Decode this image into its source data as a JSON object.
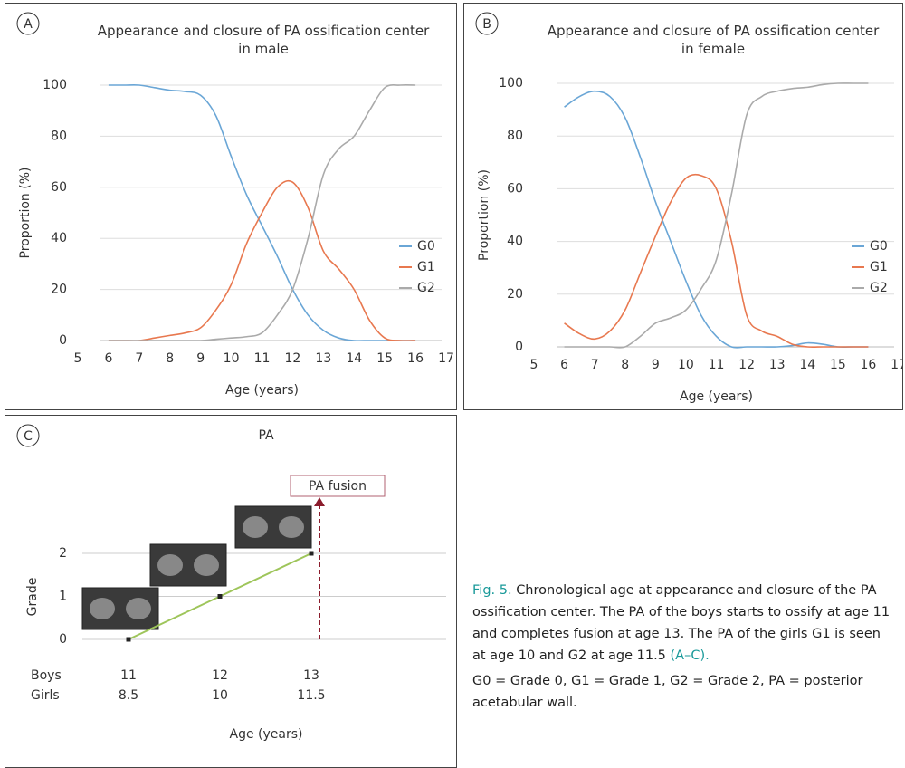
{
  "chart_data": [
    {
      "type": "line",
      "panel": "A",
      "title": "Appearance and closure of PA ossification center in male",
      "x_label": "Age (years)",
      "y_label": "Proportion (%)",
      "x": [
        6,
        6.5,
        7,
        7.5,
        8,
        8.5,
        9,
        9.5,
        10,
        10.5,
        11,
        11.5,
        12,
        12.5,
        13,
        13.5,
        14,
        14.5,
        15,
        15.5,
        16
      ],
      "series": [
        {
          "name": "G0",
          "color": "#6aa6d6",
          "values": [
            100,
            100,
            100,
            99,
            98,
            97.5,
            96,
            88,
            72,
            57,
            45,
            33,
            20,
            10,
            4,
            1,
            0,
            0,
            0,
            0,
            0
          ]
        },
        {
          "name": "G1",
          "color": "#e8784f",
          "values": [
            0,
            0,
            0,
            1,
            2,
            3,
            5,
            12,
            22,
            38,
            50,
            60,
            62,
            52,
            35,
            28,
            20,
            8,
            1,
            0,
            0
          ]
        },
        {
          "name": "G2",
          "color": "#aaaaaa",
          "values": [
            0,
            0,
            0,
            0,
            0,
            0,
            0,
            0.5,
            1,
            1.5,
            3,
            10,
            20,
            40,
            65,
            75,
            80,
            90,
            99,
            100,
            100
          ]
        }
      ],
      "xlim": [
        5,
        17
      ],
      "xticks": [
        5,
        6,
        7,
        8,
        9,
        10,
        11,
        12,
        13,
        14,
        15,
        16,
        17
      ],
      "ylim": [
        0,
        100
      ],
      "yticks": [
        0,
        20,
        40,
        60,
        80,
        100
      ],
      "grid": true,
      "legend": "right"
    },
    {
      "type": "line",
      "panel": "B",
      "title": "Appearance and closure of PA ossification center in female",
      "x_label": "Age (years)",
      "y_label": "Proportion (%)",
      "x": [
        6,
        6.5,
        7,
        7.5,
        8,
        8.5,
        9,
        9.5,
        10,
        10.5,
        11,
        11.5,
        12,
        12.5,
        13,
        13.5,
        14,
        14.5,
        15,
        15.5,
        16
      ],
      "series": [
        {
          "name": "G0",
          "color": "#6aa6d6",
          "values": [
            91,
            95,
            97,
            95,
            87,
            72,
            55,
            40,
            25,
            12,
            4,
            0,
            0,
            0,
            0,
            0.5,
            1.5,
            1,
            0,
            0,
            0
          ]
        },
        {
          "name": "G1",
          "color": "#e8784f",
          "values": [
            9,
            5,
            3,
            6,
            14,
            28,
            42,
            55,
            64,
            65,
            60,
            40,
            12,
            6,
            4,
            1,
            0,
            0,
            0,
            0,
            0
          ]
        },
        {
          "name": "G2",
          "color": "#aaaaaa",
          "values": [
            0,
            0,
            0,
            0,
            0,
            4,
            9,
            11,
            14,
            22,
            33,
            58,
            88,
            95,
            97,
            98,
            98.5,
            99.5,
            100,
            100,
            100
          ]
        }
      ],
      "xlim": [
        5,
        17
      ],
      "xticks": [
        5,
        6,
        7,
        8,
        9,
        10,
        11,
        12,
        13,
        14,
        15,
        16,
        17
      ],
      "ylim": [
        0,
        100
      ],
      "yticks": [
        0,
        20,
        40,
        60,
        80,
        100
      ],
      "grid": true,
      "legend": "right"
    },
    {
      "type": "line",
      "panel": "C",
      "title": "PA",
      "x_label": "Age (years)",
      "y_label": "Grade",
      "values": [
        0,
        1,
        2
      ],
      "color": "#9ec55a",
      "rows": [
        {
          "name": "Boys",
          "values": [
            11,
            12,
            13
          ]
        },
        {
          "name": "Girls",
          "values": [
            8.5,
            10,
            11.5
          ]
        }
      ],
      "ylim": [
        0,
        2
      ],
      "yticks": [
        0,
        1,
        2
      ],
      "grid": true,
      "annotation": "PA fusion"
    }
  ],
  "caption": {
    "label": "Fig. 5.",
    "text": "Chronological age at appearance and closure of the PA ossification center. The PA of the boys starts to ossify at age 11 and completes fusion at age 13. The PA of the girls G1 is seen at age 10 and G2 at age 11.5",
    "ref": "(A–C).",
    "abbrev": "G0 = Grade 0, G1 = Grade 1, G2 = Grade 2, PA = posterior acetabular wall."
  }
}
